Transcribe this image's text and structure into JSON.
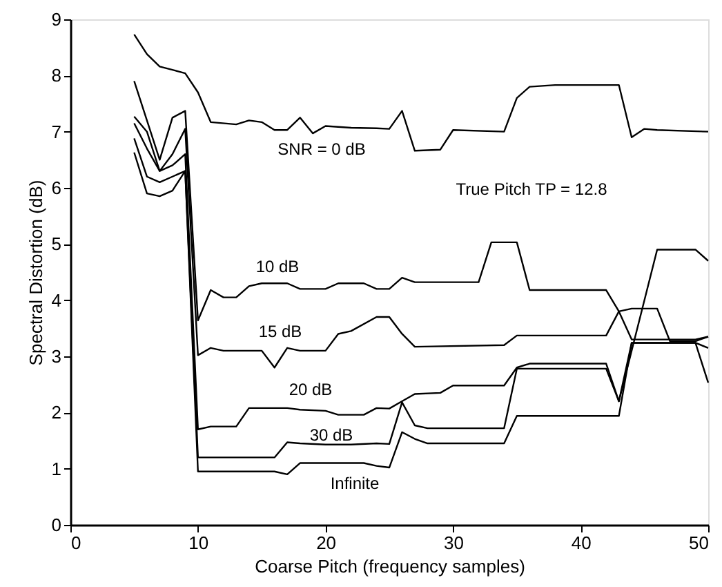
{
  "chart_data": {
    "type": "line",
    "xlabel": "Coarse Pitch (frequency samples)",
    "ylabel": "Spectral Distortion (dB)",
    "xlim": [
      0,
      50
    ],
    "ylim": [
      0,
      9
    ],
    "xticks": [
      0,
      10,
      20,
      30,
      40,
      50
    ],
    "yticks": [
      0,
      1,
      2,
      3,
      4,
      5,
      6,
      7,
      8,
      9
    ],
    "grid": false,
    "marker": "none",
    "line_style": "solid",
    "series": [
      {
        "name": "SNR = 0 dB",
        "color": "#000000",
        "x": [
          5,
          6,
          7,
          8,
          9,
          10,
          11,
          13,
          14,
          15,
          16,
          17,
          18,
          19,
          20,
          22,
          24,
          25,
          26,
          27,
          29,
          30,
          34,
          35,
          36,
          38,
          43,
          44,
          45,
          46,
          50
        ],
        "values": [
          8.73,
          8.38,
          8.16,
          8.1,
          8.04,
          7.7,
          7.17,
          7.13,
          7.2,
          7.17,
          7.03,
          7.03,
          7.25,
          6.97,
          7.1,
          7.07,
          7.06,
          7.05,
          7.37,
          6.66,
          6.68,
          7.03,
          7.0,
          7.6,
          7.8,
          7.83,
          7.83,
          6.9,
          7.05,
          7.03,
          7.0
        ]
      },
      {
        "name": "10 dB",
        "color": "#000000",
        "x": [
          5,
          6,
          7,
          8,
          9,
          10,
          11,
          12,
          13,
          14,
          15,
          17,
          18,
          20,
          21,
          23,
          24,
          25,
          26,
          27,
          32,
          33,
          35,
          36,
          42,
          43,
          44,
          49,
          50
        ],
        "values": [
          7.9,
          7.2,
          6.5,
          7.25,
          7.37,
          3.64,
          4.18,
          4.05,
          4.05,
          4.25,
          4.3,
          4.3,
          4.2,
          4.2,
          4.3,
          4.3,
          4.2,
          4.2,
          4.4,
          4.32,
          4.32,
          5.03,
          5.03,
          4.18,
          4.18,
          3.8,
          3.3,
          3.3,
          3.35
        ]
      },
      {
        "name": "15 dB",
        "color": "#000000",
        "x": [
          5,
          6,
          7,
          8,
          9,
          10,
          11,
          12,
          15,
          16,
          17,
          18,
          20,
          21,
          22,
          24,
          25,
          26,
          27,
          34,
          35,
          42,
          43,
          44,
          46,
          47,
          49,
          50
        ],
        "values": [
          7.27,
          7.0,
          6.3,
          6.6,
          7.05,
          3.02,
          3.15,
          3.1,
          3.1,
          2.8,
          3.15,
          3.1,
          3.1,
          3.4,
          3.45,
          3.7,
          3.7,
          3.4,
          3.17,
          3.2,
          3.37,
          3.37,
          3.8,
          3.85,
          3.85,
          3.27,
          3.27,
          3.35
        ]
      },
      {
        "name": "20 dB",
        "color": "#000000",
        "x": [
          5,
          6,
          7,
          8,
          9,
          10,
          11,
          13,
          14,
          17,
          18,
          20,
          21,
          23,
          24,
          25,
          26,
          27,
          29,
          30,
          34,
          35,
          36,
          42,
          43,
          46,
          49,
          50
        ],
        "values": [
          7.15,
          6.7,
          6.3,
          6.4,
          6.6,
          1.7,
          1.75,
          1.75,
          2.08,
          2.08,
          2.05,
          2.03,
          1.96,
          1.96,
          2.08,
          2.07,
          2.2,
          2.33,
          2.35,
          2.48,
          2.48,
          2.8,
          2.87,
          2.87,
          2.2,
          4.9,
          4.9,
          4.7
        ]
      },
      {
        "name": "30 dB",
        "color": "#000000",
        "x": [
          5,
          6,
          7,
          8,
          9,
          10,
          16,
          17,
          18,
          20,
          22,
          24,
          25,
          26,
          27,
          28,
          34,
          35,
          42,
          43,
          44,
          49,
          50
        ],
        "values": [
          6.88,
          6.2,
          6.1,
          6.2,
          6.3,
          1.2,
          1.2,
          1.47,
          1.45,
          1.43,
          1.43,
          1.45,
          1.44,
          2.18,
          1.77,
          1.72,
          1.72,
          2.78,
          2.78,
          2.2,
          3.24,
          3.24,
          2.53
        ]
      },
      {
        "name": "Infinite",
        "color": "#000000",
        "x": [
          5,
          6,
          7,
          8,
          9,
          10,
          16,
          17,
          18,
          23,
          24,
          25,
          26,
          27,
          28,
          34,
          35,
          43,
          44,
          49,
          50
        ],
        "values": [
          6.63,
          5.9,
          5.85,
          5.95,
          6.3,
          0.95,
          0.95,
          0.9,
          1.1,
          1.1,
          1.05,
          1.02,
          1.65,
          1.53,
          1.45,
          1.45,
          1.94,
          1.94,
          3.24,
          3.24,
          3.15
        ]
      }
    ],
    "annotations": [
      "True Pitch TP = 12.8"
    ]
  }
}
